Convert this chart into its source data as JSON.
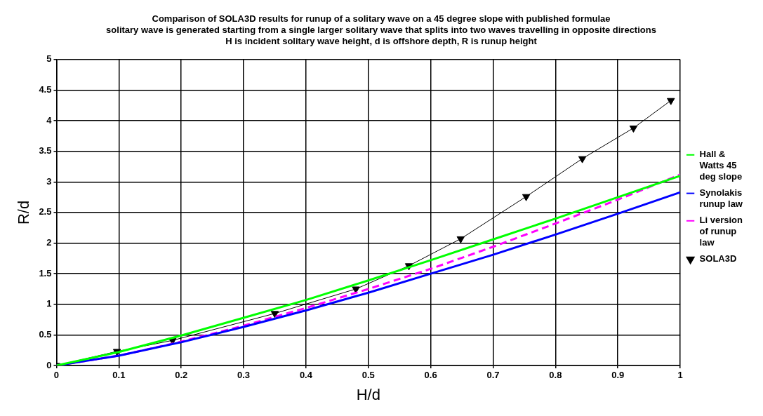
{
  "chart_data": {
    "type": "line",
    "title": [
      "Comparison of SOLA3D results for runup of a solitary wave on a 45 degree slope with published formulae",
      "solitary wave is generated starting from a single larger solitary wave that splits into two waves travelling in opposite directions",
      "H is incident solitary wave height, d is offshore depth, R is runup height"
    ],
    "xlabel": "H/d",
    "ylabel": "R/d",
    "series": [
      {
        "name": "Hall & Watts 45 deg slope",
        "color": "#00ff00",
        "marker": "none",
        "line_style": "solid",
        "x": [
          0,
          0.1,
          0.2,
          0.3,
          0.4,
          0.5,
          0.6,
          0.7,
          0.8,
          0.9,
          1
        ],
        "values": [
          0,
          0.22,
          0.49,
          0.78,
          1.07,
          1.39,
          1.72,
          2.06,
          2.4,
          2.75,
          3.1
        ]
      },
      {
        "name": "Synolakis runup law",
        "color": "#0000ff",
        "marker": "none",
        "line_style": "solid",
        "x": [
          0,
          0.1,
          0.2,
          0.3,
          0.4,
          0.5,
          0.6,
          0.7,
          0.8,
          0.9,
          1
        ],
        "values": [
          0,
          0.16,
          0.38,
          0.63,
          0.9,
          1.19,
          1.5,
          1.81,
          2.14,
          2.48,
          2.83
        ]
      },
      {
        "name": "Li version of runup law",
        "color": "#ff00ff",
        "marker": "none",
        "line_style": "dashed",
        "x": [
          0,
          0.1,
          0.2,
          0.3,
          0.4,
          0.5,
          0.6,
          0.7,
          0.8,
          0.9,
          1
        ],
        "values": [
          0,
          0.16,
          0.39,
          0.65,
          0.94,
          1.25,
          1.58,
          1.94,
          2.32,
          2.71,
          3.12
        ]
      },
      {
        "name": "SOLA3D",
        "color": "#000000",
        "marker": "triangle",
        "line_style": "solid",
        "x": [
          0,
          0.097,
          0.186,
          0.35,
          0.48,
          0.565,
          0.648,
          0.753,
          0.843,
          0.925,
          0.985
        ],
        "values": [
          0,
          0.23,
          0.41,
          0.85,
          1.25,
          1.63,
          2.07,
          2.76,
          3.38,
          3.88,
          4.33
        ]
      }
    ],
    "xlim": [
      0,
      1
    ],
    "xticks": [
      0,
      0.1,
      0.2,
      0.3,
      0.4,
      0.5,
      0.6,
      0.7,
      0.8,
      0.9,
      1
    ],
    "ylim": [
      0,
      5
    ],
    "yticks": [
      0,
      0.5,
      1,
      1.5,
      2,
      2.5,
      3,
      3.5,
      4,
      4.5,
      5
    ],
    "grid": true,
    "legend": "right"
  }
}
